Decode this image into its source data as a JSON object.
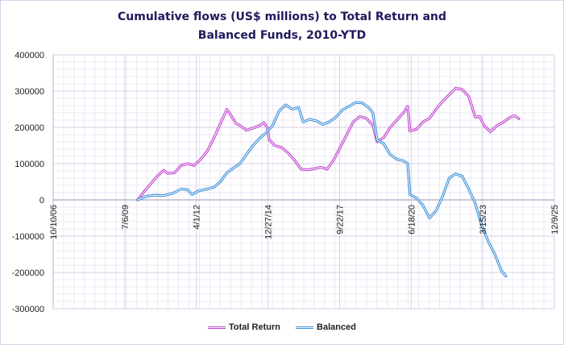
{
  "chart_data": {
    "type": "line",
    "title_line1": "Cumulative flows (US$ millions) to Total Return and",
    "title_line2": "Balanced Funds, 2010-YTD",
    "xlabel": "",
    "ylabel": "",
    "xlim": [
      "2006-10-10",
      "2025-12-09"
    ],
    "ylim": [
      -300000,
      400000
    ],
    "yticks": [
      400000,
      300000,
      200000,
      100000,
      0,
      -100000,
      -200000,
      -300000
    ],
    "xticks": [
      {
        "date": "2006-10-10",
        "label": "10/10/06"
      },
      {
        "date": "2009-07-06",
        "label": "7/6/09"
      },
      {
        "date": "2012-04-01",
        "label": "4/1/12"
      },
      {
        "date": "2014-12-27",
        "label": "12/27/14"
      },
      {
        "date": "2017-09-22",
        "label": "9/22/17"
      },
      {
        "date": "2020-06-18",
        "label": "6/18/20"
      },
      {
        "date": "2023-03-15",
        "label": "3/15/23"
      },
      {
        "date": "2025-12-09",
        "label": "12/9/25"
      }
    ],
    "grid": true,
    "legend_position": "bottom",
    "series": [
      {
        "name": "Total Return",
        "color": "#c040d0",
        "points": [
          [
            "2010-01-01",
            0
          ],
          [
            "2010-05-01",
            30000
          ],
          [
            "2010-10-01",
            65000
          ],
          [
            "2011-01-01",
            82000
          ],
          [
            "2011-03-01",
            73000
          ],
          [
            "2011-06-01",
            75000
          ],
          [
            "2011-09-01",
            95000
          ],
          [
            "2011-12-01",
            100000
          ],
          [
            "2012-03-01",
            95000
          ],
          [
            "2012-06-01",
            112000
          ],
          [
            "2012-09-01",
            135000
          ],
          [
            "2012-12-01",
            170000
          ],
          [
            "2013-03-01",
            210000
          ],
          [
            "2013-06-01",
            250000
          ],
          [
            "2013-08-01",
            232000
          ],
          [
            "2013-10-01",
            212000
          ],
          [
            "2013-12-01",
            205000
          ],
          [
            "2014-03-01",
            192000
          ],
          [
            "2014-06-01",
            198000
          ],
          [
            "2014-09-01",
            205000
          ],
          [
            "2014-11-01",
            213000
          ],
          [
            "2014-12-15",
            200000
          ],
          [
            "2015-01-15",
            165000
          ],
          [
            "2015-04-01",
            150000
          ],
          [
            "2015-07-01",
            145000
          ],
          [
            "2015-10-01",
            130000
          ],
          [
            "2016-01-01",
            110000
          ],
          [
            "2016-04-01",
            85000
          ],
          [
            "2016-07-01",
            83000
          ],
          [
            "2016-10-01",
            86000
          ],
          [
            "2017-01-01",
            90000
          ],
          [
            "2017-04-01",
            85000
          ],
          [
            "2017-07-01",
            110000
          ],
          [
            "2017-10-01",
            145000
          ],
          [
            "2018-01-01",
            180000
          ],
          [
            "2018-04-01",
            215000
          ],
          [
            "2018-07-01",
            230000
          ],
          [
            "2018-10-01",
            225000
          ],
          [
            "2019-01-01",
            205000
          ],
          [
            "2019-03-01",
            160000
          ],
          [
            "2019-06-01",
            172000
          ],
          [
            "2019-09-01",
            200000
          ],
          [
            "2019-12-01",
            220000
          ],
          [
            "2020-03-01",
            240000
          ],
          [
            "2020-05-01",
            258000
          ],
          [
            "2020-06-01",
            190000
          ],
          [
            "2020-09-01",
            195000
          ],
          [
            "2020-12-01",
            215000
          ],
          [
            "2021-03-01",
            225000
          ],
          [
            "2021-06-01",
            250000
          ],
          [
            "2021-09-01",
            272000
          ],
          [
            "2021-12-01",
            290000
          ],
          [
            "2022-03-01",
            308000
          ],
          [
            "2022-06-01",
            305000
          ],
          [
            "2022-09-01",
            285000
          ],
          [
            "2022-12-01",
            228000
          ],
          [
            "2023-02-01",
            230000
          ],
          [
            "2023-04-01",
            205000
          ],
          [
            "2023-07-01",
            188000
          ],
          [
            "2023-10-01",
            205000
          ],
          [
            "2024-01-01",
            215000
          ],
          [
            "2024-04-01",
            228000
          ],
          [
            "2024-06-01",
            232000
          ],
          [
            "2024-08-01",
            224000
          ]
        ]
      },
      {
        "name": "Balanced",
        "color": "#3a8fd8",
        "points": [
          [
            "2010-01-01",
            0
          ],
          [
            "2010-05-01",
            10000
          ],
          [
            "2010-09-01",
            13000
          ],
          [
            "2011-01-01",
            12000
          ],
          [
            "2011-05-01",
            18000
          ],
          [
            "2011-09-01",
            30000
          ],
          [
            "2011-12-01",
            28000
          ],
          [
            "2012-02-01",
            15000
          ],
          [
            "2012-05-01",
            25000
          ],
          [
            "2012-09-01",
            30000
          ],
          [
            "2012-12-01",
            35000
          ],
          [
            "2013-03-01",
            50000
          ],
          [
            "2013-06-01",
            75000
          ],
          [
            "2013-09-01",
            88000
          ],
          [
            "2013-12-01",
            100000
          ],
          [
            "2014-03-01",
            125000
          ],
          [
            "2014-06-01",
            150000
          ],
          [
            "2014-09-01",
            170000
          ],
          [
            "2014-12-01",
            185000
          ],
          [
            "2015-03-01",
            205000
          ],
          [
            "2015-06-01",
            245000
          ],
          [
            "2015-09-01",
            262000
          ],
          [
            "2015-12-01",
            250000
          ],
          [
            "2016-03-01",
            255000
          ],
          [
            "2016-05-01",
            215000
          ],
          [
            "2016-08-01",
            222000
          ],
          [
            "2016-11-01",
            218000
          ],
          [
            "2017-02-01",
            208000
          ],
          [
            "2017-05-01",
            215000
          ],
          [
            "2017-08-01",
            228000
          ],
          [
            "2017-11-01",
            248000
          ],
          [
            "2018-02-01",
            258000
          ],
          [
            "2018-05-01",
            268000
          ],
          [
            "2018-08-01",
            268000
          ],
          [
            "2018-11-01",
            255000
          ],
          [
            "2019-01-01",
            240000
          ],
          [
            "2019-03-01",
            165000
          ],
          [
            "2019-06-01",
            155000
          ],
          [
            "2019-09-01",
            125000
          ],
          [
            "2019-12-01",
            112000
          ],
          [
            "2020-03-01",
            108000
          ],
          [
            "2020-05-01",
            100000
          ],
          [
            "2020-06-01",
            15000
          ],
          [
            "2020-09-01",
            5000
          ],
          [
            "2020-12-01",
            -15000
          ],
          [
            "2021-03-01",
            -50000
          ],
          [
            "2021-06-01",
            -30000
          ],
          [
            "2021-09-01",
            10000
          ],
          [
            "2021-12-01",
            60000
          ],
          [
            "2022-03-01",
            72000
          ],
          [
            "2022-06-01",
            65000
          ],
          [
            "2022-09-01",
            30000
          ],
          [
            "2022-12-01",
            -10000
          ],
          [
            "2023-03-01",
            -70000
          ],
          [
            "2023-06-01",
            -115000
          ],
          [
            "2023-09-01",
            -150000
          ],
          [
            "2023-12-01",
            -195000
          ],
          [
            "2024-02-01",
            -210000
          ]
        ]
      }
    ]
  }
}
